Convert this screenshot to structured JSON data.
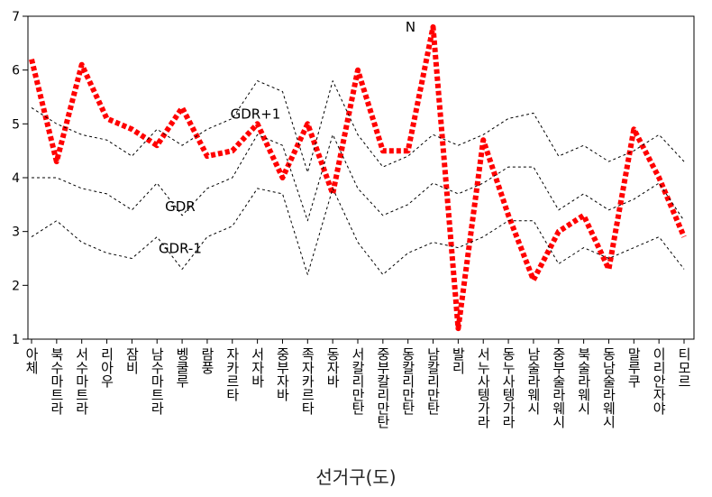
{
  "chart_data": {
    "type": "line",
    "title": "",
    "xlabel": "선거구(도)",
    "ylabel": "",
    "ylim": [
      1,
      7
    ],
    "yticks": [
      1,
      2,
      3,
      4,
      5,
      6,
      7
    ],
    "categories": [
      "아체",
      "북수마트라",
      "서수마트라",
      "리아우",
      "잠비",
      "남수마트라",
      "벵쿨루",
      "람풍",
      "자카르타",
      "서자바",
      "중부자바",
      "족자카르타",
      "동자바",
      "서칼리만탄",
      "중부칼리만탄",
      "동칼리만탄",
      "남칼리만탄",
      "발리",
      "서누사텡가라",
      "동누사텡가라",
      "남술라웨시",
      "중부술라웨시",
      "북술라웨시",
      "동남술라웨시",
      "말루쿠",
      "이리안자야",
      "티모르"
    ],
    "series": [
      {
        "name": "N",
        "values": [
          6.2,
          4.3,
          6.1,
          5.1,
          4.9,
          4.6,
          5.3,
          4.4,
          4.5,
          5.0,
          4.0,
          5.0,
          3.7,
          6.0,
          4.5,
          4.5,
          6.8,
          1.2,
          4.7,
          3.3,
          2.1,
          3.0,
          3.3,
          2.3,
          4.9,
          4.0,
          2.9
        ]
      },
      {
        "name": "GDR+1",
        "values": [
          5.3,
          5.0,
          4.8,
          4.7,
          4.4,
          4.9,
          4.6,
          4.9,
          5.1,
          5.8,
          5.6,
          4.1,
          5.8,
          4.8,
          4.2,
          4.4,
          4.8,
          4.6,
          4.8,
          5.1,
          5.2,
          4.4,
          4.6,
          4.3,
          4.5,
          4.8,
          4.3
        ]
      },
      {
        "name": "GDR",
        "values": [
          4.0,
          4.0,
          3.8,
          3.7,
          3.4,
          3.9,
          3.3,
          3.8,
          4.0,
          4.8,
          4.6,
          3.2,
          4.8,
          3.8,
          3.3,
          3.5,
          3.9,
          3.7,
          3.9,
          4.2,
          4.2,
          3.4,
          3.7,
          3.4,
          3.6,
          3.9,
          3.2
        ]
      },
      {
        "name": "GDR-1",
        "values": [
          2.9,
          3.2,
          2.8,
          2.6,
          2.5,
          2.9,
          2.3,
          2.9,
          3.1,
          3.8,
          3.7,
          2.2,
          3.8,
          2.8,
          2.2,
          2.6,
          2.8,
          2.7,
          2.9,
          3.2,
          3.2,
          2.4,
          2.7,
          2.5,
          2.7,
          2.9,
          2.3
        ]
      }
    ],
    "series_colors": {
      "N": "#ff0000",
      "GDR+1": "#000000",
      "GDR": "#000000",
      "GDR-1": "#000000"
    },
    "annotations": [
      {
        "text": "N",
        "series": "N",
        "at_category": "남칼리만탄"
      },
      {
        "text": "GDR+1",
        "series": "GDR+1",
        "at_category": "중부자바"
      },
      {
        "text": "GDR",
        "series": "GDR",
        "at_category": "람풍"
      },
      {
        "text": "GDR-1",
        "series": "GDR-1",
        "at_category": "람풍"
      }
    ],
    "grid": false,
    "legend": "none"
  }
}
